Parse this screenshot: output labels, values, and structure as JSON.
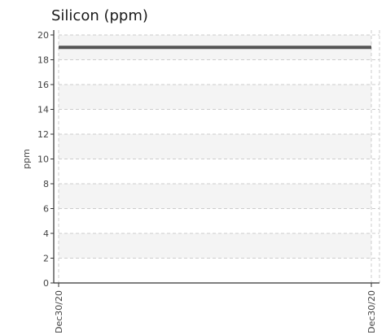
{
  "chart_data": {
    "type": "line",
    "title": "Silicon (ppm)",
    "ylabel": "ppm",
    "xlabel": "",
    "ylim": [
      0,
      20
    ],
    "yticks": [
      0,
      2,
      4,
      6,
      8,
      10,
      12,
      14,
      16,
      18,
      20
    ],
    "x_tick_labels": [
      "Dec30/20",
      "Dec30/20"
    ],
    "series": [
      {
        "x": [
          "Dec30/20",
          "Dec30/20"
        ],
        "values": [
          19,
          19
        ],
        "color": "#555555"
      }
    ],
    "grid": true,
    "band_color": "#f4f4f4",
    "grid_color": "#cccccc",
    "axis_color": "#333333"
  }
}
